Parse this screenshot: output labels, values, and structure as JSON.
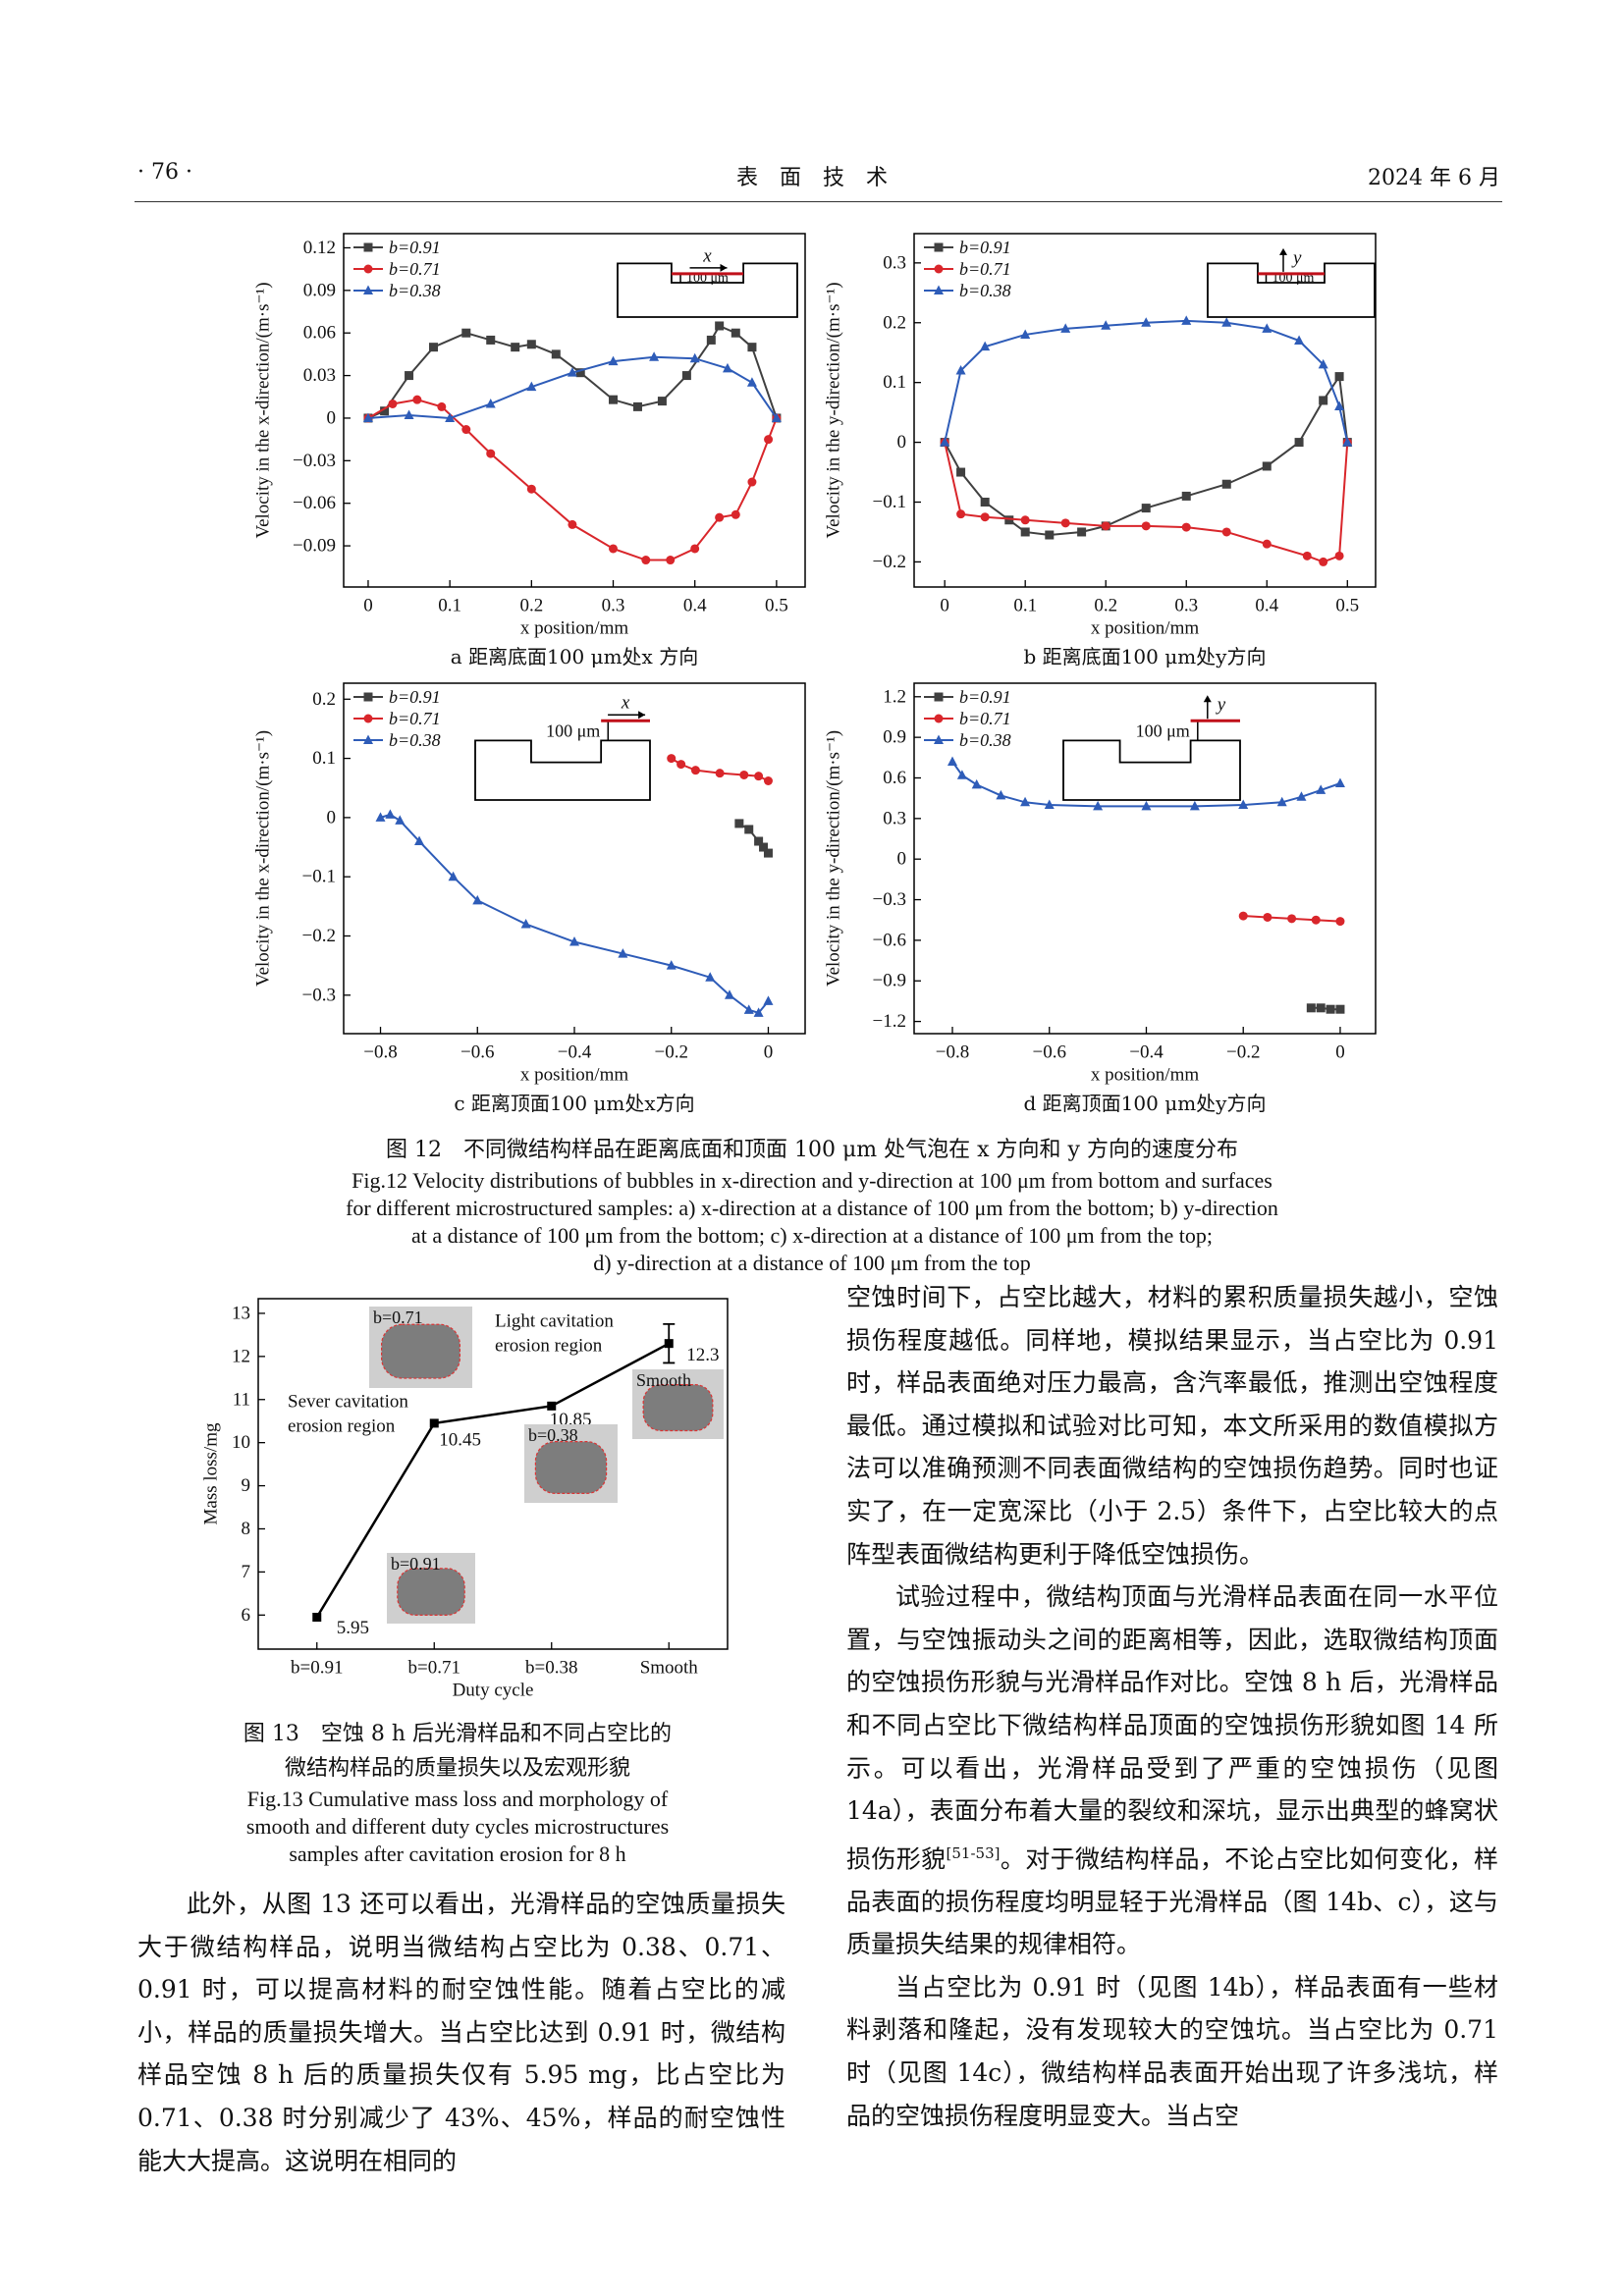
{
  "header": {
    "page": "· 76 ·",
    "journal": "表　面　技　术",
    "date": "2024 年 6 月"
  },
  "chart_data": [
    {
      "type": "line",
      "caption": "a 距离底面100 μm处x 方向",
      "x_label": "x position/mm",
      "y_label": "Velocity in the x-direction/(m·s⁻¹)",
      "inset": {
        "arrow": "x",
        "scale": "100 μm"
      },
      "xlim": [
        -0.03,
        0.535
      ],
      "ylim": [
        -0.119,
        0.13
      ],
      "xticks": [
        0,
        0.1,
        0.2,
        0.3,
        0.4,
        0.5
      ],
      "yticks": [
        {
          "value": -0.09,
          "label": "−0.09"
        },
        {
          "value": -0.06,
          "label": "−0.06"
        },
        {
          "value": -0.03,
          "label": "−0.03"
        },
        0,
        0.03,
        0.06,
        0.09,
        0.12
      ],
      "series": [
        {
          "name": "b=0.91",
          "color": "#404040",
          "marker": "square",
          "x": [
            0,
            0.02,
            0.05,
            0.08,
            0.12,
            0.15,
            0.18,
            0.2,
            0.23,
            0.26,
            0.3,
            0.33,
            0.36,
            0.39,
            0.42,
            0.43,
            0.45,
            0.47,
            0.5
          ],
          "values": [
            0,
            0.005,
            0.03,
            0.05,
            0.06,
            0.055,
            0.05,
            0.052,
            0.045,
            0.032,
            0.013,
            0.008,
            0.012,
            0.03,
            0.055,
            0.065,
            0.06,
            0.05,
            0
          ]
        },
        {
          "name": "b=0.71",
          "color": "#d9262b",
          "marker": "circle",
          "x": [
            0,
            0.03,
            0.06,
            0.09,
            0.12,
            0.15,
            0.2,
            0.25,
            0.3,
            0.34,
            0.37,
            0.4,
            0.43,
            0.45,
            0.47,
            0.49,
            0.5
          ],
          "values": [
            0,
            0.01,
            0.013,
            0.008,
            -0.008,
            -0.025,
            -0.05,
            -0.075,
            -0.092,
            -0.1,
            -0.1,
            -0.092,
            -0.07,
            -0.068,
            -0.045,
            -0.015,
            0
          ]
        },
        {
          "name": "b=0.38",
          "color": "#2e5cb8",
          "marker": "triangle",
          "x": [
            0,
            0.05,
            0.1,
            0.15,
            0.2,
            0.25,
            0.3,
            0.35,
            0.4,
            0.44,
            0.47,
            0.5
          ],
          "values": [
            0,
            0.002,
            0,
            0.01,
            0.022,
            0.032,
            0.04,
            0.043,
            0.042,
            0.035,
            0.025,
            0
          ]
        }
      ]
    },
    {
      "type": "line",
      "caption": "b 距离底面100 μm处y方向",
      "x_label": "x position/mm",
      "y_label": "Velocity in the y-direction/(m·s⁻¹)",
      "inset": {
        "arrow": "y",
        "scale": "100 μm"
      },
      "xlim": [
        -0.038,
        0.535
      ],
      "ylim": [
        -0.242,
        0.349
      ],
      "xticks": [
        0,
        0.1,
        0.2,
        0.3,
        0.4,
        0.5
      ],
      "yticks": [
        {
          "value": -0.2,
          "label": "−0.2"
        },
        {
          "value": -0.1,
          "label": "−0.1"
        },
        0,
        0.1,
        0.2,
        0.3
      ],
      "series": [
        {
          "name": "b=0.91",
          "color": "#404040",
          "marker": "square",
          "x": [
            0,
            0.02,
            0.05,
            0.08,
            0.1,
            0.13,
            0.17,
            0.2,
            0.25,
            0.3,
            0.35,
            0.4,
            0.44,
            0.47,
            0.49,
            0.5
          ],
          "values": [
            0,
            -0.05,
            -0.1,
            -0.13,
            -0.15,
            -0.155,
            -0.15,
            -0.14,
            -0.11,
            -0.09,
            -0.07,
            -0.04,
            0,
            0.07,
            0.11,
            0
          ]
        },
        {
          "name": "b=0.71",
          "color": "#d9262b",
          "marker": "circle",
          "x": [
            0,
            0.02,
            0.05,
            0.1,
            0.15,
            0.2,
            0.25,
            0.3,
            0.35,
            0.4,
            0.45,
            0.47,
            0.49,
            0.5
          ],
          "values": [
            0,
            -0.12,
            -0.125,
            -0.13,
            -0.135,
            -0.14,
            -0.14,
            -0.142,
            -0.15,
            -0.17,
            -0.19,
            -0.2,
            -0.19,
            0
          ]
        },
        {
          "name": "b=0.38",
          "color": "#2e5cb8",
          "marker": "triangle",
          "x": [
            0,
            0.02,
            0.05,
            0.1,
            0.15,
            0.2,
            0.25,
            0.3,
            0.35,
            0.4,
            0.44,
            0.47,
            0.49,
            0.5
          ],
          "values": [
            0,
            0.12,
            0.16,
            0.18,
            0.19,
            0.195,
            0.2,
            0.203,
            0.2,
            0.19,
            0.17,
            0.13,
            0.06,
            0
          ]
        }
      ]
    },
    {
      "type": "line",
      "caption": "c 距离顶面100 μm处x方向",
      "x_label": "x position/mm",
      "y_label": "Velocity in the x-direction/(m·s⁻¹)",
      "inset": {
        "arrow": "x",
        "scale": "100 μm"
      },
      "xlim": [
        -0.876,
        0.076
      ],
      "ylim": [
        -0.365,
        0.227
      ],
      "xticks": [
        {
          "value": -0.8,
          "label": "−0.8"
        },
        {
          "value": -0.6,
          "label": "−0.6"
        },
        {
          "value": -0.4,
          "label": "−0.4"
        },
        {
          "value": -0.2,
          "label": "−0.2"
        },
        0
      ],
      "yticks": [
        {
          "value": -0.3,
          "label": "−0.3"
        },
        {
          "value": -0.2,
          "label": "−0.2"
        },
        {
          "value": -0.1,
          "label": "−0.1"
        },
        0,
        0.1,
        0.2
      ],
      "series": [
        {
          "name": "b=0.91",
          "color": "#404040",
          "marker": "square",
          "x": [
            -0.06,
            -0.04,
            -0.02,
            -0.01,
            0
          ],
          "values": [
            -0.01,
            -0.02,
            -0.04,
            -0.05,
            -0.06
          ]
        },
        {
          "name": "b=0.71",
          "color": "#d9262b",
          "marker": "circle",
          "x": [
            -0.2,
            -0.18,
            -0.15,
            -0.1,
            -0.05,
            -0.02,
            0
          ],
          "values": [
            0.1,
            0.09,
            0.08,
            0.075,
            0.072,
            0.07,
            0.062
          ]
        },
        {
          "name": "b=0.38",
          "color": "#2e5cb8",
          "marker": "triangle",
          "x": [
            -0.8,
            -0.78,
            -0.76,
            -0.72,
            -0.65,
            -0.6,
            -0.5,
            -0.4,
            -0.3,
            -0.2,
            -0.12,
            -0.08,
            -0.04,
            -0.02,
            0
          ],
          "values": [
            0,
            0.005,
            -0.005,
            -0.04,
            -0.1,
            -0.14,
            -0.18,
            -0.21,
            -0.23,
            -0.25,
            -0.27,
            -0.3,
            -0.325,
            -0.33,
            -0.31
          ]
        }
      ]
    },
    {
      "type": "line",
      "caption": "d 距离顶面100 μm处y方向",
      "x_label": "x position/mm",
      "y_label": "Velocity in the y-direction/(m·s⁻¹)",
      "inset": {
        "arrow": "y",
        "scale": "100 μm"
      },
      "xlim": [
        -0.879,
        0.073
      ],
      "ylim": [
        -1.29,
        1.3
      ],
      "xticks": [
        {
          "value": -0.8,
          "label": "−0.8"
        },
        {
          "value": -0.6,
          "label": "−0.6"
        },
        {
          "value": -0.4,
          "label": "−0.4"
        },
        {
          "value": -0.2,
          "label": "−0.2"
        },
        0
      ],
      "yticks": [
        {
          "value": -1.2,
          "label": "−1.2"
        },
        {
          "value": -0.9,
          "label": "−0.9"
        },
        {
          "value": -0.6,
          "label": "−0.6"
        },
        {
          "value": -0.3,
          "label": "−0.3"
        },
        0,
        0.3,
        0.6,
        0.9,
        1.2
      ],
      "series": [
        {
          "name": "b=0.91",
          "color": "#404040",
          "marker": "square",
          "x": [
            -0.06,
            -0.04,
            -0.02,
            0
          ],
          "values": [
            -1.1,
            -1.1,
            -1.11,
            -1.11
          ]
        },
        {
          "name": "b=0.71",
          "color": "#d9262b",
          "marker": "circle",
          "x": [
            -0.2,
            -0.15,
            -0.1,
            -0.05,
            0
          ],
          "values": [
            -0.42,
            -0.43,
            -0.44,
            -0.45,
            -0.46
          ]
        },
        {
          "name": "b=0.38",
          "color": "#2e5cb8",
          "marker": "triangle",
          "x": [
            -0.8,
            -0.78,
            -0.75,
            -0.7,
            -0.65,
            -0.6,
            -0.5,
            -0.4,
            -0.3,
            -0.2,
            -0.12,
            -0.08,
            -0.04,
            0
          ],
          "values": [
            0.72,
            0.62,
            0.55,
            0.47,
            0.42,
            0.4,
            0.39,
            0.39,
            0.39,
            0.4,
            0.42,
            0.46,
            0.51,
            0.56
          ]
        }
      ]
    },
    {
      "type": "line",
      "x_label": "Duty cycle",
      "y_label": "Mass loss/mg",
      "color": "#000000",
      "marker": "square",
      "categories": [
        "b=0.91",
        "b=0.71",
        "b=0.38",
        "Smooth"
      ],
      "values": [
        5.95,
        10.45,
        10.85,
        12.3
      ],
      "errors": [
        null,
        null,
        null,
        0.45
      ],
      "ylim": [
        5.21,
        13.34
      ],
      "yticks": [
        6,
        7,
        8,
        9,
        10,
        11,
        12,
        13
      ],
      "photos": [
        {
          "label": "b=0.71"
        },
        {
          "label": "b=0.38"
        },
        {
          "label": "Smooth"
        },
        {
          "label": "b=0.91"
        }
      ],
      "annotations": [
        [
          "Light cavitation",
          "erosion region"
        ],
        [
          "Sever cavitation",
          "erosion region"
        ]
      ]
    }
  ],
  "figure12": {
    "caption_cn": "图 12　不同微结构样品在距离底面和顶面 100 μm 处气泡在 x 方向和 y 方向的速度分布",
    "caption_en": [
      "Fig.12 Velocity distributions of bubbles in x-direction and y-direction at 100 μm from bottom and surfaces",
      "for different microstructured samples: a) x-direction at a distance of 100 μm from the bottom; b) y-direction",
      "at a distance of 100 μm from the bottom; c) x-direction at a distance of 100 μm from the top;",
      "d) y-direction at a distance of 100 μm from the top"
    ]
  },
  "figure13": {
    "caption_cn": [
      "图 13　空蚀 8 h 后光滑样品和不同占空比的",
      "微结构样品的质量损失以及宏观形貌"
    ],
    "caption_en": [
      "Fig.13 Cumulative mass loss and morphology of",
      "smooth and different duty cycles microstructures",
      "samples after cavitation erosion for 8 h"
    ]
  },
  "body": {
    "left": [
      "此外，从图 13 还可以看出，光滑样品的空蚀质量损失大于微结构样品，说明当微结构占空比为 0.38、0.71、0.91 时，可以提高材料的耐空蚀性能。随着占空比的减小，样品的质量损失增大。当占空比达到 0.91 时，微结构样品空蚀 8 h 后的质量损失仅有 5.95 mg，比占空比为 0.71、0.38 时分别减少了 43%、45%，样品的耐空蚀性能大大提高。这说明在相同的"
    ],
    "right": [
      "空蚀时间下，占空比越大，材料的累积质量损失越小，空蚀损伤程度越低。同样地，模拟结果显示，当占空比为 0.91 时，样品表面绝对压力最高，含汽率最低，推测出空蚀程度最低。通过模拟和试验对比可知，本文所采用的数值模拟方法可以准确预测不同表面微结构的空蚀损伤趋势。同时也证实了，在一定宽深比（小于 2.5）条件下，占空比较大的点阵型表面微结构更利于降低空蚀损伤。",
      {
        "before": "试验过程中，微结构顶面与光滑样品表面在同一水平位置，与空蚀振动头之间的距离相等，因此，选取微结构顶面的空蚀损伤形貌与光滑样品作对比。空蚀 8 h 后，光滑样品和不同占空比下微结构样品顶面的空蚀损伤形貌如图 14 所示。可以看出，光滑样品受到了严重的空蚀损伤（见图 14a），表面分布着大量的裂纹和深坑，显示出典型的蜂窝状损伤形貌",
        "ref": "[51-53]",
        "after": "。对于微结构样品，不论占空比如何变化，样品表面的损伤程度均明显轻于光滑样品（图 14b、c），这与质量损失结果的规律相符。"
      },
      "当占空比为 0.91 时（见图 14b），样品表面有一些材料剥落和隆起，没有发现较大的空蚀坑。当占空比为 0.71 时（见图 14c），微结构样品表面开始出现了许多浅坑，样品的空蚀损伤程度明显变大。当占空"
    ]
  }
}
